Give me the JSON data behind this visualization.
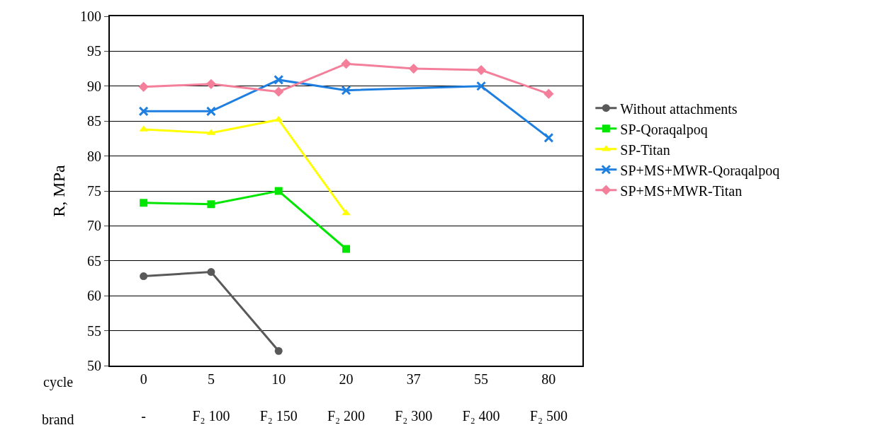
{
  "chart_data": {
    "type": "line",
    "ylabel": "R, MPa",
    "categories": [
      "0\n-",
      "5\nF₂ 100",
      "10\nF₂ 150",
      "20\nF₂ 200",
      "37\nF₂ 300",
      "55\nF₂ 400",
      "80\nF₂ 500"
    ],
    "annotations": [
      "cycle",
      "brand"
    ],
    "ylim": [
      50,
      100
    ],
    "yticks": [
      50,
      55,
      60,
      65,
      70,
      75,
      80,
      85,
      90,
      95,
      100
    ],
    "grid": "y",
    "legend": "right",
    "series": [
      {
        "name": "Without attachments",
        "color": "#595959",
        "marker": "circle",
        "values": [
          62.8,
          63.4,
          52.1,
          null,
          null,
          null,
          null
        ]
      },
      {
        "name": "SP-Qoraqalpoq",
        "color": "#00e600",
        "marker": "square",
        "values": [
          73.3,
          73.1,
          75.0,
          66.7,
          null,
          null,
          null
        ]
      },
      {
        "name": "SP-Titan",
        "color": "#ffff00",
        "marker": "triangle",
        "values": [
          83.8,
          83.3,
          85.2,
          71.8,
          null,
          null,
          null
        ]
      },
      {
        "name": "SP+MS+MWR-Qoraqalpoq",
        "color": "#1e7fe0",
        "marker": "cross",
        "values": [
          86.4,
          86.4,
          90.9,
          89.4,
          null,
          90.0,
          82.6
        ]
      },
      {
        "name": "SP+MS+MWR-Titan",
        "color": "#f47f9a",
        "marker": "diamond",
        "values": [
          89.9,
          90.3,
          89.2,
          93.2,
          92.5,
          92.3,
          88.9
        ]
      }
    ]
  }
}
